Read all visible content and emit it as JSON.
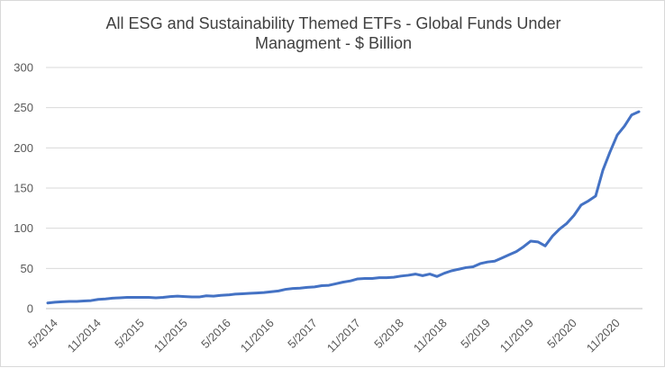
{
  "chart_data": {
    "type": "line",
    "title_line1": "All ESG and Sustainability Themed ETFs - Global Funds Under",
    "title_line2": "Managment - $ Billion",
    "xlabel": "",
    "ylabel": "",
    "ylim": [
      0,
      300
    ],
    "yticks": [
      0,
      50,
      100,
      150,
      200,
      250,
      300
    ],
    "grid": true,
    "legend": "none",
    "color": "#4472c4",
    "x": [
      "5/2014",
      "6/2014",
      "7/2014",
      "8/2014",
      "9/2014",
      "10/2014",
      "11/2014",
      "12/2014",
      "1/2015",
      "2/2015",
      "3/2015",
      "4/2015",
      "5/2015",
      "6/2015",
      "7/2015",
      "8/2015",
      "9/2015",
      "10/2015",
      "11/2015",
      "12/2015",
      "1/2016",
      "2/2016",
      "3/2016",
      "4/2016",
      "5/2016",
      "6/2016",
      "7/2016",
      "8/2016",
      "9/2016",
      "10/2016",
      "11/2016",
      "12/2016",
      "1/2017",
      "2/2017",
      "3/2017",
      "4/2017",
      "5/2017",
      "6/2017",
      "7/2017",
      "8/2017",
      "9/2017",
      "10/2017",
      "11/2017",
      "12/2017",
      "1/2018",
      "2/2018",
      "3/2018",
      "4/2018",
      "5/2018",
      "6/2018",
      "7/2018",
      "8/2018",
      "9/2018",
      "10/2018",
      "11/2018",
      "12/2018",
      "1/2019",
      "2/2019",
      "3/2019",
      "4/2019",
      "5/2019",
      "6/2019",
      "7/2019",
      "8/2019",
      "9/2019",
      "10/2019",
      "11/2019",
      "12/2019",
      "1/2020",
      "2/2020",
      "3/2020",
      "4/2020",
      "5/2020",
      "6/2020",
      "7/2020",
      "8/2020",
      "9/2020",
      "10/2020",
      "11/2020",
      "12/2020",
      "1/2021",
      "2/2021",
      "3/2021"
    ],
    "xtick_labels": [
      {
        "index": 0,
        "label": "5/2014"
      },
      {
        "index": 6,
        "label": "11/2014"
      },
      {
        "index": 12,
        "label": "5/2015"
      },
      {
        "index": 18,
        "label": "11/2015"
      },
      {
        "index": 24,
        "label": "5/2016"
      },
      {
        "index": 30,
        "label": "11/2016"
      },
      {
        "index": 36,
        "label": "5/2017"
      },
      {
        "index": 42,
        "label": "11/2017"
      },
      {
        "index": 48,
        "label": "5/2018"
      },
      {
        "index": 54,
        "label": "11/2018"
      },
      {
        "index": 60,
        "label": "5/2019"
      },
      {
        "index": 66,
        "label": "11/2019"
      },
      {
        "index": 72,
        "label": "5/2020"
      },
      {
        "index": 78,
        "label": "11/2020"
      }
    ],
    "series": [
      {
        "values": [
          7,
          8,
          8.5,
          9,
          9,
          9.5,
          10,
          11.5,
          12,
          13,
          13.5,
          14,
          14,
          14,
          14,
          13.5,
          14,
          15,
          15.5,
          15,
          14.5,
          14.5,
          16,
          15.5,
          16.5,
          17,
          18,
          18.5,
          19,
          19.5,
          20,
          21,
          22,
          24,
          25,
          25.5,
          26.5,
          27,
          28.5,
          29,
          31,
          33,
          34.5,
          37,
          37.5,
          37.5,
          38.5,
          38.5,
          39,
          40.5,
          41.5,
          43,
          41,
          43,
          40,
          44,
          47,
          49,
          51,
          52,
          56,
          58,
          59,
          63,
          67,
          71,
          77,
          84,
          83,
          78,
          90,
          99,
          106,
          116,
          129,
          134,
          140,
          172,
          195,
          216,
          227,
          241,
          245
        ]
      }
    ]
  }
}
